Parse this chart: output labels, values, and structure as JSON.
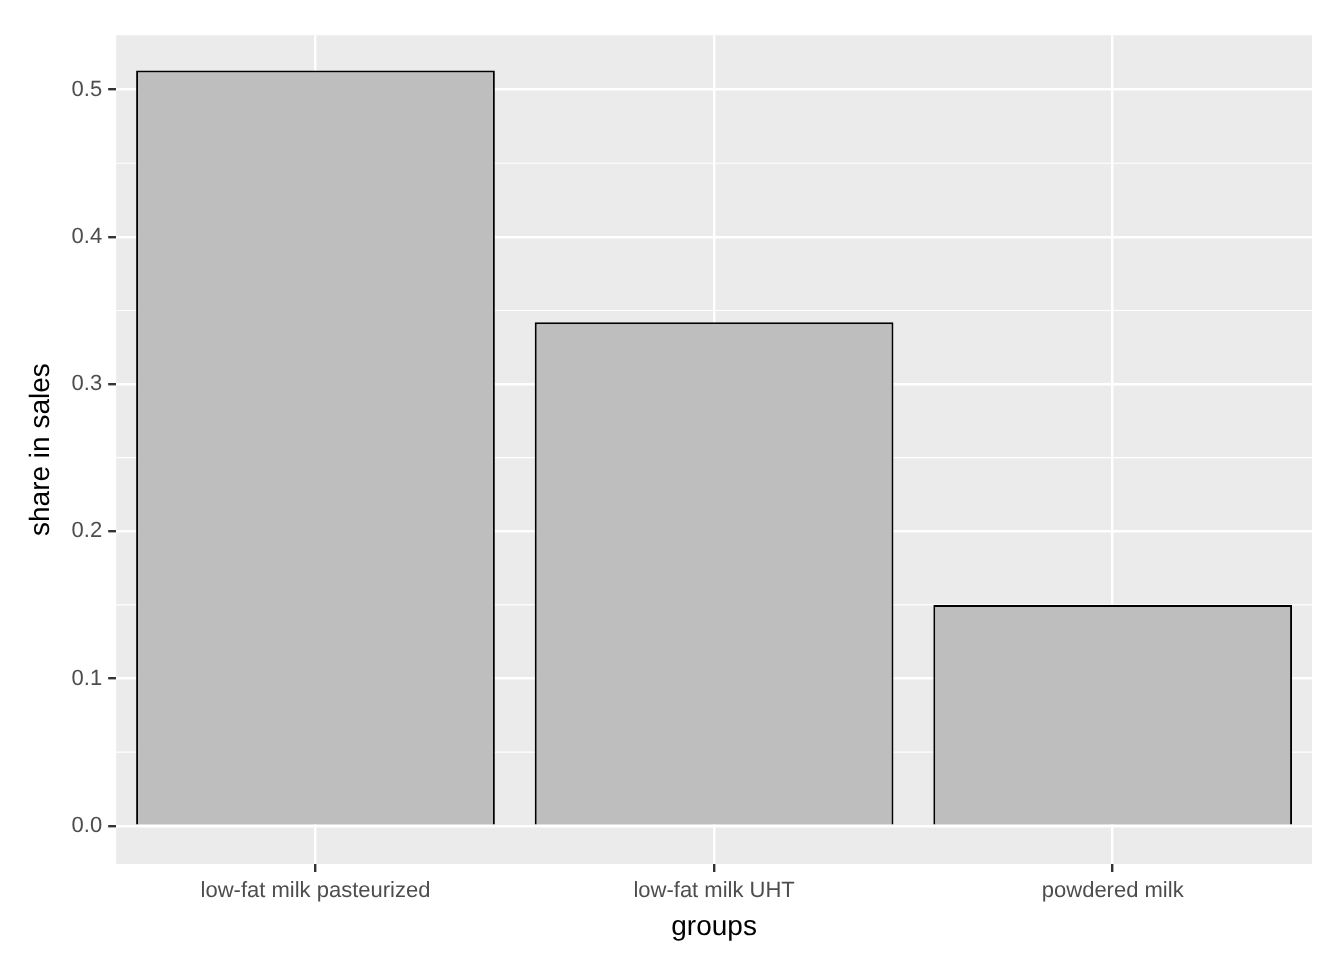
{
  "chart_data": {
    "type": "bar",
    "xlabel": "groups",
    "ylabel": "share in sales",
    "categories": [
      "low-fat milk pasteurized",
      "low-fat milk UHT",
      "powdered milk"
    ],
    "values": [
      0.513,
      0.342,
      0.15
    ],
    "color": "#bebebe",
    "ylim": [
      -0.026,
      0.537
    ],
    "yticks": [
      {
        "value": 0,
        "label": "0.0"
      },
      {
        "value": 0.1,
        "label": "0.1"
      },
      {
        "value": 0.2,
        "label": "0.2"
      },
      {
        "value": 0.3,
        "label": "0.3"
      },
      {
        "value": 0.4,
        "label": "0.4"
      },
      {
        "value": 0.5,
        "label": "0.5"
      }
    ],
    "grid": true,
    "legend": false
  }
}
